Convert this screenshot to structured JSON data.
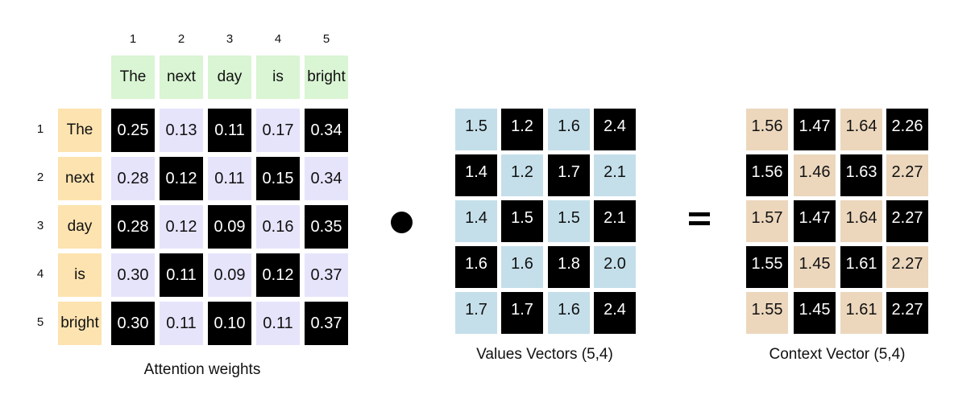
{
  "attention": {
    "col_numbers": [
      "1",
      "2",
      "3",
      "4",
      "5"
    ],
    "row_numbers": [
      "1",
      "2",
      "3",
      "4",
      "5"
    ],
    "tokens": [
      "The",
      "next",
      "day",
      "is",
      "bright"
    ],
    "weights": [
      [
        "0.25",
        "0.13",
        "0.11",
        "0.17",
        "0.34"
      ],
      [
        "0.28",
        "0.12",
        "0.11",
        "0.15",
        "0.34"
      ],
      [
        "0.28",
        "0.12",
        "0.09",
        "0.16",
        "0.35"
      ],
      [
        "0.30",
        "0.11",
        "0.09",
        "0.12",
        "0.37"
      ],
      [
        "0.30",
        "0.11",
        "0.10",
        "0.11",
        "0.37"
      ]
    ],
    "caption": "Attention weights",
    "light_color": "#e6e4fb"
  },
  "values": {
    "matrix": [
      [
        "1.5",
        "1.2",
        "1.6",
        "2.4"
      ],
      [
        "1.4",
        "1.2",
        "1.7",
        "2.1"
      ],
      [
        "1.4",
        "1.5",
        "1.5",
        "2.1"
      ],
      [
        "1.6",
        "1.6",
        "1.8",
        "2.0"
      ],
      [
        "1.7",
        "1.7",
        "1.6",
        "2.4"
      ]
    ],
    "caption": "Values Vectors (5,4)",
    "light_color": "#c4dfea"
  },
  "context": {
    "matrix": [
      [
        "1.56",
        "1.47",
        "1.64",
        "2.26"
      ],
      [
        "1.56",
        "1.46",
        "1.63",
        "2.27"
      ],
      [
        "1.57",
        "1.47",
        "1.64",
        "2.27"
      ],
      [
        "1.55",
        "1.45",
        "1.61",
        "2.27"
      ],
      [
        "1.55",
        "1.45",
        "1.61",
        "2.27"
      ]
    ],
    "caption": "Context Vector (5,4)",
    "light_color": "#ecd7bd"
  },
  "colors": {
    "dark": "#000000",
    "header_token": "#d9f5d3",
    "row_token": "#fde3b0"
  }
}
